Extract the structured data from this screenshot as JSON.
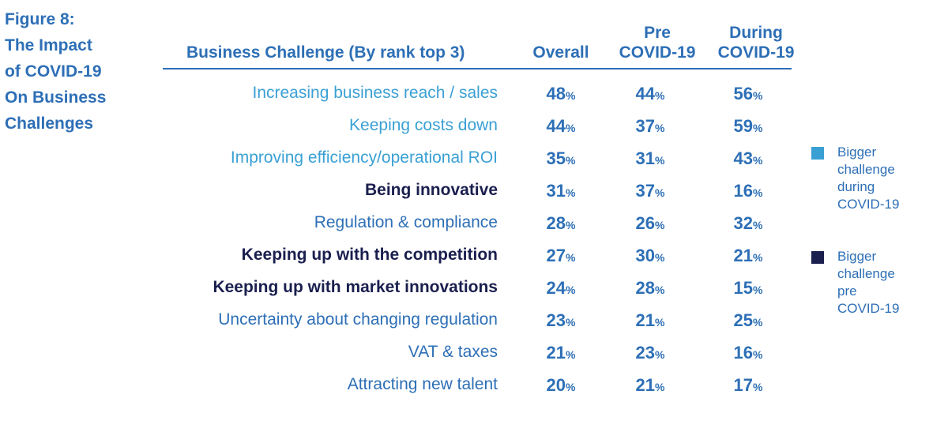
{
  "figure_title": [
    "Figure 8:",
    "The Impact",
    "of COVID-19",
    "On Business",
    "Challenges"
  ],
  "headers": {
    "challenge": "Business Challenge (By rank top 3)",
    "overall": "Overall",
    "pre": [
      "Pre",
      "COVID-19"
    ],
    "during": [
      "During",
      "COVID-19"
    ]
  },
  "percent_sign": "%",
  "colors": {
    "light_blue": "#3aa0d4",
    "navy": "#1a1f4e",
    "mid_blue": "#2d6fb6"
  },
  "legend": [
    {
      "lines": [
        "Bigger",
        "challenge",
        "during",
        "COVID-19"
      ],
      "color": "#3aa0d4"
    },
    {
      "lines": [
        "Bigger",
        "challenge",
        "pre",
        "COVID-19"
      ],
      "color": "#1a1f4e"
    }
  ],
  "chart_data": {
    "type": "table",
    "columns": [
      "Overall",
      "Pre COVID-19",
      "During COVID-19"
    ],
    "rows": [
      {
        "challenge": "Increasing business reach / sales",
        "overall": 48,
        "pre": 44,
        "during": 56,
        "category": "during"
      },
      {
        "challenge": "Keeping costs down",
        "overall": 44,
        "pre": 37,
        "during": 59,
        "category": "during"
      },
      {
        "challenge": "Improving efficiency/operational ROI",
        "overall": 35,
        "pre": 31,
        "during": 43,
        "category": "during"
      },
      {
        "challenge": "Being innovative",
        "overall": 31,
        "pre": 37,
        "during": 16,
        "category": "pre"
      },
      {
        "challenge": "Regulation & compliance",
        "overall": 28,
        "pre": 26,
        "during": 32,
        "category": "neutral"
      },
      {
        "challenge": "Keeping up with the competition",
        "overall": 27,
        "pre": 30,
        "during": 21,
        "category": "pre"
      },
      {
        "challenge": "Keeping up with market innovations",
        "overall": 24,
        "pre": 28,
        "during": 15,
        "category": "pre"
      },
      {
        "challenge": "Uncertainty about changing regulation",
        "overall": 23,
        "pre": 21,
        "during": 25,
        "category": "neutral"
      },
      {
        "challenge": "VAT & taxes",
        "overall": 21,
        "pre": 23,
        "during": 16,
        "category": "neutral"
      },
      {
        "challenge": "Attracting new talent",
        "overall": 20,
        "pre": 21,
        "during": 17,
        "category": "neutral"
      }
    ]
  }
}
